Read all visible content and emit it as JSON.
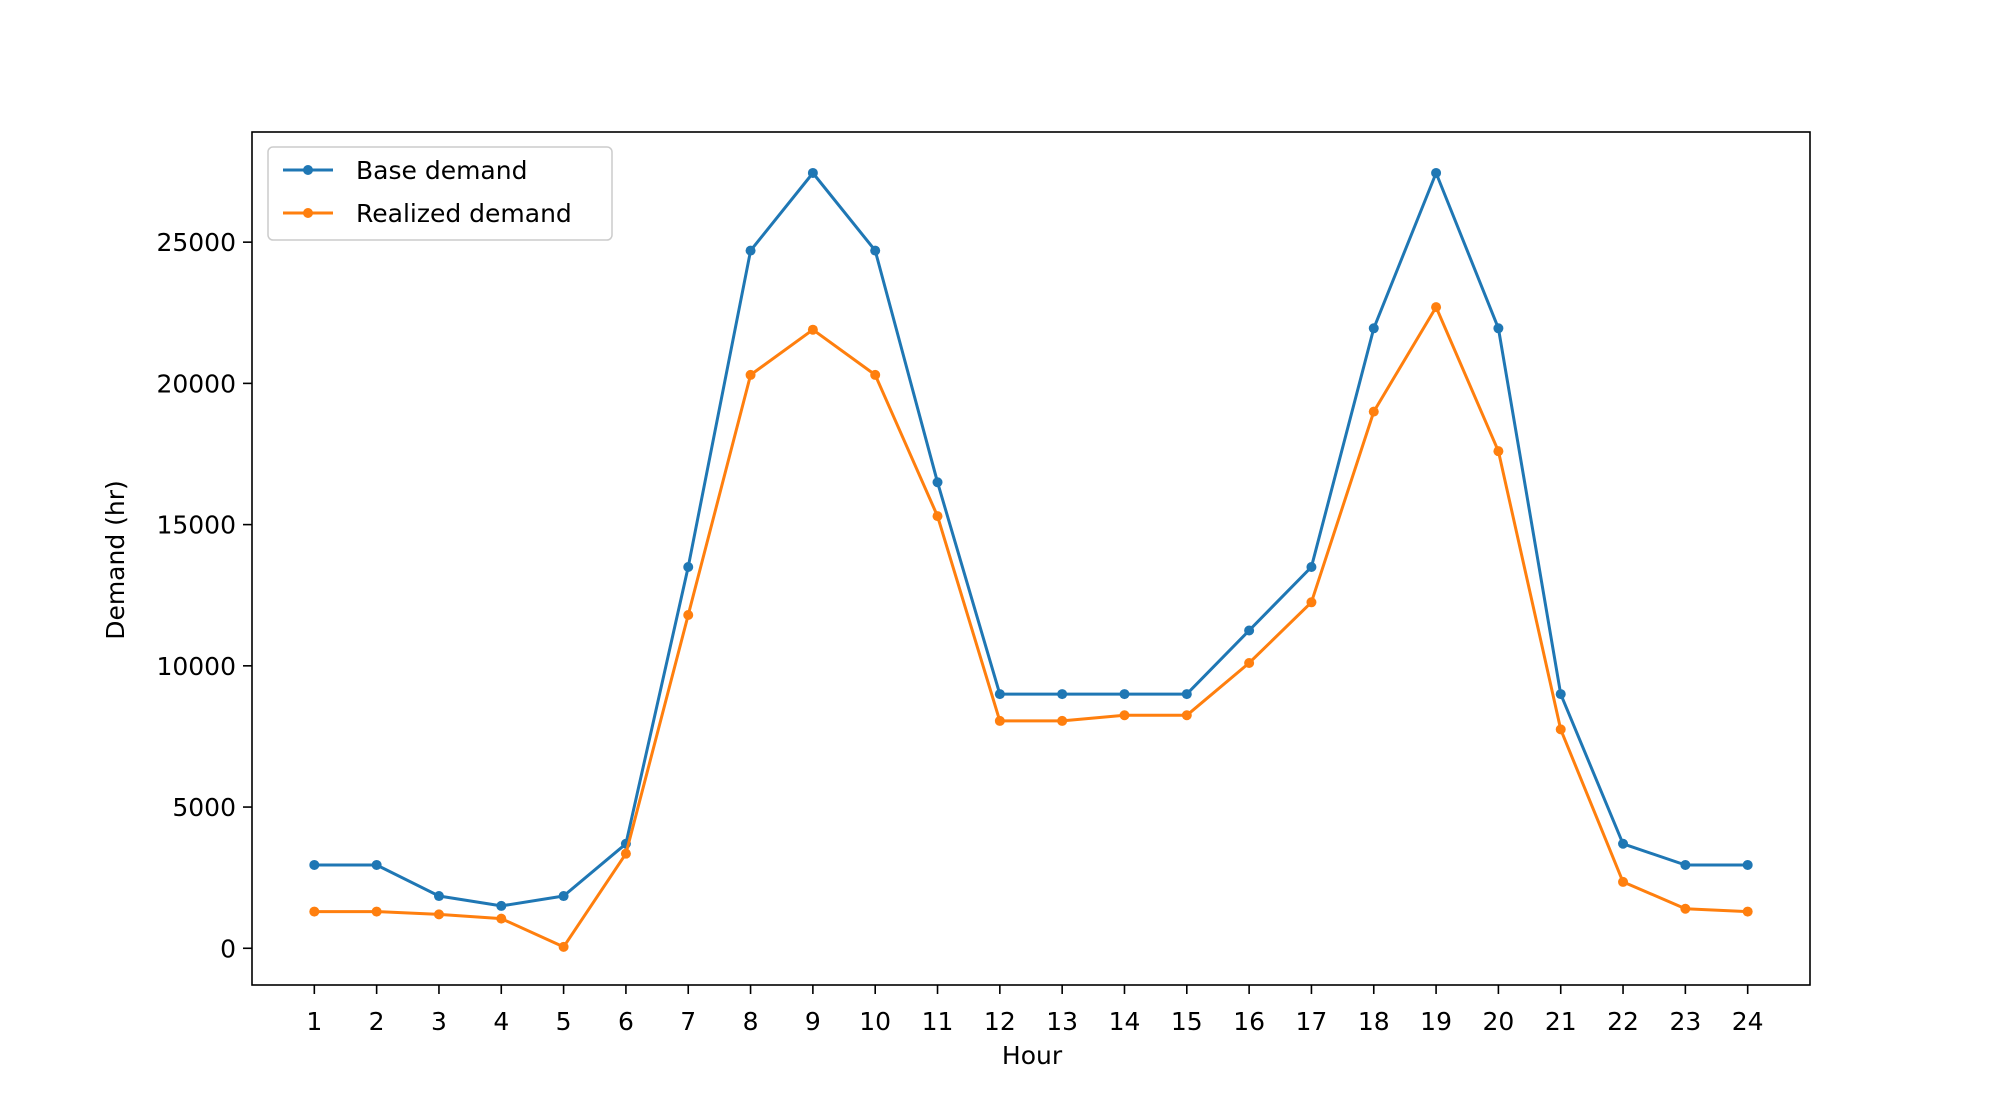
{
  "chart_data": {
    "type": "line",
    "title": "",
    "xlabel": "Hour",
    "ylabel": "Demand (hr)",
    "x": [
      1,
      2,
      3,
      4,
      5,
      6,
      7,
      8,
      9,
      10,
      11,
      12,
      13,
      14,
      15,
      16,
      17,
      18,
      19,
      20,
      21,
      22,
      23,
      24
    ],
    "xlim": [
      0,
      25
    ],
    "ylim": [
      -1300,
      28900
    ],
    "yticks": [
      0,
      5000,
      10000,
      15000,
      20000,
      25000
    ],
    "grid": false,
    "legend_position": "upper-left",
    "series": [
      {
        "name": "Base demand",
        "color": "#1f77b4",
        "marker": "dot",
        "values": [
          2950,
          2950,
          1850,
          1500,
          1850,
          3700,
          13500,
          24700,
          27450,
          24700,
          16500,
          9000,
          9000,
          9000,
          9000,
          11250,
          13500,
          21950,
          27450,
          21950,
          9000,
          3700,
          2950,
          2950
        ]
      },
      {
        "name": "Realized demand",
        "color": "#ff7f0e",
        "marker": "dot",
        "values": [
          1300,
          1300,
          1200,
          1050,
          50,
          3350,
          11800,
          20300,
          21900,
          20300,
          15300,
          8050,
          8050,
          8250,
          8250,
          10100,
          12250,
          19000,
          22700,
          17600,
          7750,
          2350,
          1400,
          1300
        ]
      }
    ]
  }
}
